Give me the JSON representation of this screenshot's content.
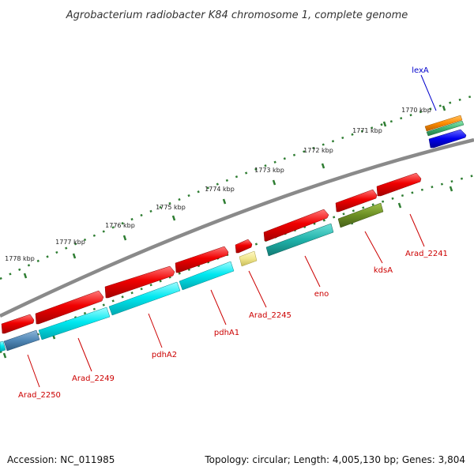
{
  "title": "Agrobacterium radiobacter K84 chromosome 1, complete genome",
  "scale_labels": [
    "1770 kbp",
    "1771 kbp",
    "1772 kbp",
    "1773 kbp",
    "1774 kbp",
    "1775 kbp",
    "1776 kbp",
    "1777 kbp",
    "1778 kbp"
  ],
  "gene_labels": [
    "lexA",
    "kdsA",
    "Arad_2241",
    "eno",
    "Arad_2245",
    "pdhA1",
    "pdhA2",
    "Arad_2249",
    "Arad_2250"
  ],
  "colors": {
    "backbone": "#808080",
    "tick": "#2e7d32",
    "gene_red": "#e60000",
    "gene_cyan": "#00e5ee",
    "gene_steelblue": "#4f86b5",
    "gene_olive": "#6b8e23",
    "gene_teal": "#20b2aa",
    "gene_khaki": "#f0e68c",
    "gene_blue": "#0000ee",
    "gene_orange": "#ff8c00",
    "gene_green": "#3cb371",
    "label_red": "#cc0000",
    "label_blue": "#0000cc"
  },
  "footer": {
    "accession": "Accession: NC_011985",
    "topology": "Topology: circular; Length: 4,005,130 bp; Genes: 3,804"
  }
}
